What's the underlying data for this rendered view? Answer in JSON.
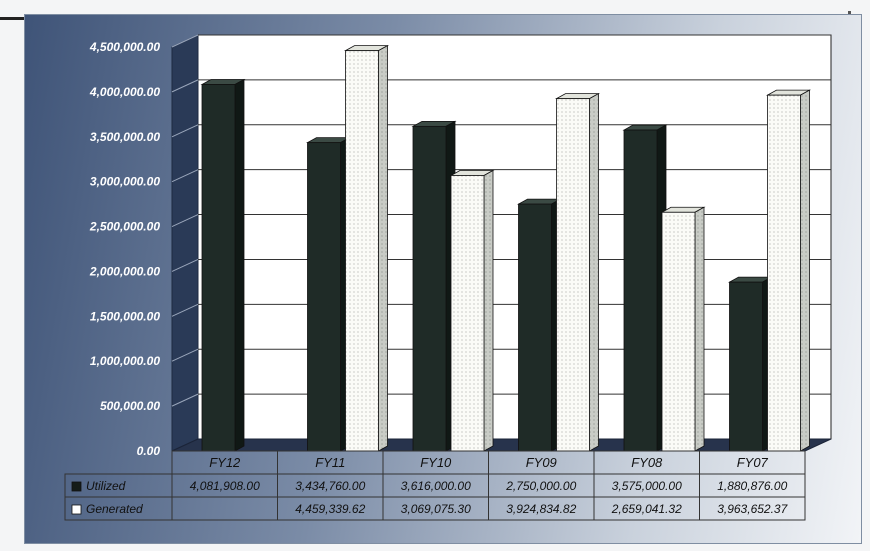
{
  "colors": {
    "utilized": "#1f2b27",
    "generated": "#fbfbf7"
  },
  "chart_data": {
    "type": "bar",
    "title": "",
    "xlabel": "",
    "ylabel": "",
    "ylim": [
      0,
      4500000
    ],
    "yticks": [
      "0.00",
      "500,000.00",
      "1,000,000.00",
      "1,500,000.00",
      "2,000,000.00",
      "2,500,000.00",
      "3,000,000.00",
      "3,500,000.00",
      "4,000,000.00",
      "4,500,000.00"
    ],
    "categories": [
      "FY12",
      "FY11",
      "FY10",
      "FY09",
      "FY08",
      "FY07"
    ],
    "series": [
      {
        "name": "Utilized",
        "values": [
          4081908.0,
          3434760.0,
          3616000.0,
          2750000.0,
          3575000.0,
          1880876.0
        ],
        "labels": [
          "4,081,908.00",
          "3,434,760.00",
          "3,616,000.00",
          "2,750,000.00",
          "3,575,000.00",
          "1,880,876.00"
        ]
      },
      {
        "name": "Generated",
        "values": [
          null,
          4459339.62,
          3069075.3,
          3924834.82,
          2659041.32,
          3963652.37
        ],
        "labels": [
          "",
          "4,459,339.62",
          "3,069,075.30",
          "3,924,834.82",
          "2,659,041.32",
          "3,963,652.37"
        ]
      }
    ],
    "grid": true,
    "legend": "data table"
  }
}
